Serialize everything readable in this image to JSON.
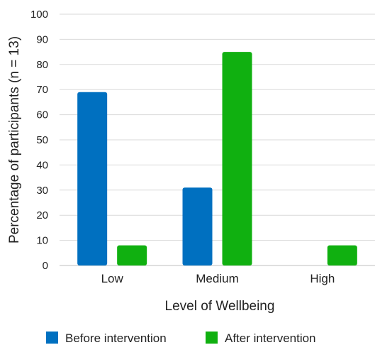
{
  "chart_data": {
    "type": "bar",
    "categories": [
      "Low",
      "Medium",
      "High"
    ],
    "series": [
      {
        "name": "Before intervention",
        "values": [
          69,
          31,
          0
        ],
        "color": "#0070C0"
      },
      {
        "name": "After intervention",
        "values": [
          8,
          85,
          8
        ],
        "color": "#10B010"
      }
    ],
    "xlabel": "Level of Wellbeing",
    "ylabel": "Percentage of participants (n = 13)",
    "ylim": [
      0,
      100
    ],
    "yticks": [
      0,
      10,
      20,
      30,
      40,
      50,
      60,
      70,
      80,
      90,
      100
    ],
    "grid": true,
    "legend_position": "bottom"
  }
}
